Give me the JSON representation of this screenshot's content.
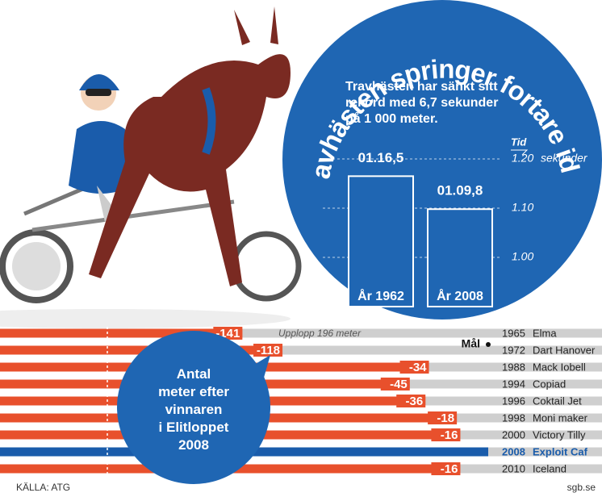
{
  "chart_data": [
    {
      "type": "bar",
      "title": "Travhästen springer fortare idag",
      "subtitle": "Travhästen har sänkt sitt rekord med 6,7 sekunder på 1 000 meter.",
      "y_label": "Tid",
      "y_unit": "sekunder",
      "categories": [
        "År 1962",
        "År 2008"
      ],
      "values": [
        76.5,
        69.8
      ],
      "value_labels": [
        "01.16,5",
        "01.09,8"
      ],
      "color": "#1f66b3",
      "ylim": [
        50,
        80
      ],
      "yticks": [
        {
          "value": 60,
          "label": "1.00"
        },
        {
          "value": 70,
          "label": "1.10"
        },
        {
          "value": 80,
          "label": "1.20"
        }
      ],
      "grid": true
    },
    {
      "type": "hbar",
      "annotation": "Upplopp 196 meter",
      "finish_label": "Mål",
      "callout": "Antal meter efter vinnaren i Elitloppet 2008",
      "years": [
        "1965",
        "1972",
        "1988",
        "1994",
        "1996",
        "1998",
        "2000",
        "2008",
        "2010"
      ],
      "categories": [
        "Elma",
        "Dart Hanover",
        "Mack Iobell",
        "Copiad",
        "Coktail Jet",
        "Moni maker",
        "Victory Tilly",
        "Exploit Caf",
        "Iceland"
      ],
      "values": [
        -141,
        -118,
        -34,
        -45,
        -36,
        -18,
        -16,
        0,
        -16
      ],
      "value_labels": [
        "-141",
        "-118",
        "-34",
        "-45",
        "-36",
        "-18",
        "-16",
        null,
        "-16"
      ],
      "colors": [
        "#e8502c",
        "#e8502c",
        "#e8502c",
        "#e8502c",
        "#e8502c",
        "#e8502c",
        "#e8502c",
        "#1a5cab",
        "#e8502c"
      ],
      "xlim": [
        -280,
        0
      ],
      "source": "KÄLLA: ATG",
      "credit": "sgb.se"
    }
  ]
}
